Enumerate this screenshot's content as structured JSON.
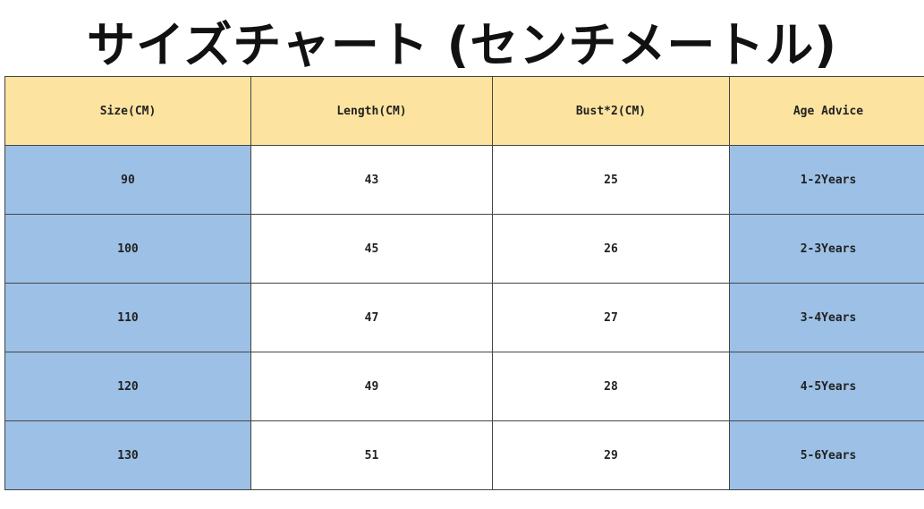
{
  "title": "サイズチャート (センチメートル)",
  "table": {
    "headers": [
      "Size(CM)",
      "Length(CM)",
      "Bust*2(CM)",
      "Age Advice"
    ],
    "rows": [
      [
        "90",
        "43",
        "25",
        "1-2Years"
      ],
      [
        "100",
        "45",
        "26",
        "2-3Years"
      ],
      [
        "110",
        "47",
        "27",
        "3-4Years"
      ],
      [
        "120",
        "49",
        "28",
        "4-5Years"
      ],
      [
        "130",
        "51",
        "29",
        "5-6Years"
      ]
    ]
  },
  "colors": {
    "header": "#fce4a0",
    "highlight": "#9dc0e6"
  }
}
